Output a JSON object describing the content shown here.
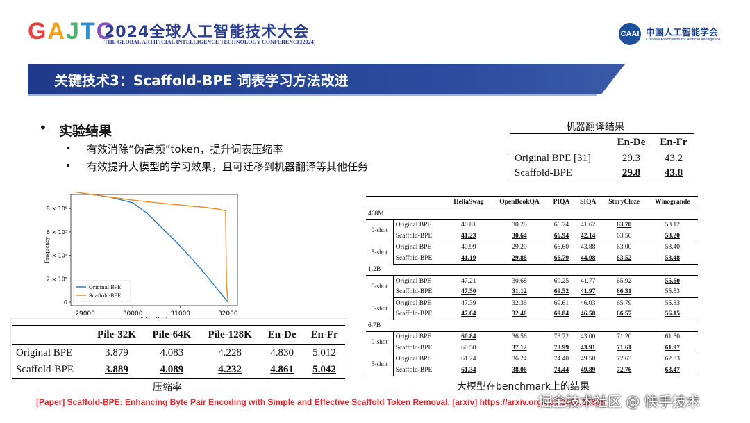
{
  "header": {
    "logo": [
      "G",
      "A",
      "J",
      "T",
      "C"
    ],
    "logo_colors": [
      "#e8403a",
      "#f3a21c",
      "#4db26c",
      "#2f8fd6",
      "#8b4fbf"
    ],
    "conf_title": "2024全球人工智能技术大会",
    "conf_subtitle": "THE GLOBAL ARTIFICIAL INTELLIGENCE TECHNOLOGY CONFERENCE(2024)",
    "caai_mark": "CAAI",
    "caai_name": "中国人工智能学会",
    "caai_en": "Chinese Association for Artificial Intelligence"
  },
  "section_title": "关键技术3：Scaffold-BPE 词表学习方法改进",
  "bullets": {
    "main": "实验结果",
    "subs": [
      "有效消除“伪高频”token，提升词表压缩率",
      "有效提升大模型的学习效果，且可迁移到机器翻译等其他任务"
    ]
  },
  "mt_table": {
    "caption": "机器翻译结果",
    "headers": [
      "",
      "En-De",
      "En-Fr"
    ],
    "rows": [
      {
        "name": "Original BPE [31]",
        "v": [
          "29.3",
          "43.2"
        ],
        "best": [
          false,
          false
        ]
      },
      {
        "name": "Scaffold-BPE",
        "v": [
          "29.8",
          "43.8"
        ],
        "best": [
          true,
          true
        ]
      }
    ]
  },
  "benchmark": {
    "caption": "大模型在benchmark上的结果",
    "headers": [
      "",
      "",
      "HellaSwag",
      "OpenBookQA",
      "PIQA",
      "SIQA",
      "StoryCloze",
      "Winogrande"
    ],
    "sizes": [
      {
        "size": "468M",
        "groups": [
          {
            "shot": "0-shot",
            "rows": [
              {
                "model": "Original BPE",
                "v": [
                  "40.81",
                  "30.20",
                  "66.74",
                  "41.62",
                  "63.70",
                  "53.12"
                ],
                "b": [
                  0,
                  0,
                  0,
                  0,
                  1,
                  0
                ]
              },
              {
                "model": "Scaffold-BPE",
                "v": [
                  "41.23",
                  "30.64",
                  "66.94",
                  "42.14",
                  "63.56",
                  "53.20"
                ],
                "b": [
                  1,
                  1,
                  1,
                  1,
                  0,
                  1
                ]
              }
            ]
          },
          {
            "shot": "5-shot",
            "rows": [
              {
                "model": "Original BPE",
                "v": [
                  "40.99",
                  "29.20",
                  "66.60",
                  "43.88",
                  "63.00",
                  "53.40"
                ],
                "b": [
                  0,
                  0,
                  0,
                  0,
                  0,
                  0
                ]
              },
              {
                "model": "Scaffold-BPE",
                "v": [
                  "41.19",
                  "29.88",
                  "66.79",
                  "44.98",
                  "63.52",
                  "53.48"
                ],
                "b": [
                  1,
                  1,
                  1,
                  1,
                  1,
                  1
                ]
              }
            ]
          }
        ]
      },
      {
        "size": "1.2B",
        "groups": [
          {
            "shot": "0-shot",
            "rows": [
              {
                "model": "Original BPE",
                "v": [
                  "47.21",
                  "30.68",
                  "69.25",
                  "41.77",
                  "65.92",
                  "55.60"
                ],
                "b": [
                  0,
                  0,
                  0,
                  0,
                  0,
                  1
                ]
              },
              {
                "model": "Scaffold-BPE",
                "v": [
                  "47.50",
                  "31.12",
                  "69.52",
                  "41.97",
                  "66.31",
                  "55.53"
                ],
                "b": [
                  1,
                  1,
                  1,
                  1,
                  1,
                  0
                ]
              }
            ]
          },
          {
            "shot": "5-shot",
            "rows": [
              {
                "model": "Original BPE",
                "v": [
                  "47.39",
                  "32.36",
                  "69.61",
                  "46.03",
                  "65.79",
                  "55.33"
                ],
                "b": [
                  0,
                  0,
                  0,
                  0,
                  0,
                  0
                ]
              },
              {
                "model": "Scaffold-BPE",
                "v": [
                  "47.64",
                  "32.40",
                  "69.84",
                  "46.58",
                  "66.57",
                  "56.15"
                ],
                "b": [
                  1,
                  1,
                  1,
                  1,
                  1,
                  1
                ]
              }
            ]
          }
        ]
      },
      {
        "size": "6.7B",
        "groups": [
          {
            "shot": "0-shot",
            "rows": [
              {
                "model": "Original BPE",
                "v": [
                  "60.84",
                  "36.56",
                  "73.72",
                  "43.00",
                  "71.20",
                  "61.50"
                ],
                "b": [
                  1,
                  0,
                  0,
                  0,
                  0,
                  0
                ]
              },
              {
                "model": "Scaffold-BPE",
                "v": [
                  "60.50",
                  "37.12",
                  "73.99",
                  "43.91",
                  "71.61",
                  "61.97"
                ],
                "b": [
                  0,
                  1,
                  1,
                  1,
                  1,
                  1
                ]
              }
            ]
          },
          {
            "shot": "5-shot",
            "rows": [
              {
                "model": "Original BPE",
                "v": [
                  "61.24",
                  "36.24",
                  "74.40",
                  "49.58",
                  "72.63",
                  "62.83"
                ],
                "b": [
                  0,
                  0,
                  0,
                  0,
                  0,
                  0
                ]
              },
              {
                "model": "Scaffold-BPE",
                "v": [
                  "61.34",
                  "38.08",
                  "74.44",
                  "49.89",
                  "72.76",
                  "63.47"
                ],
                "b": [
                  1,
                  1,
                  1,
                  1,
                  1,
                  1
                ]
              }
            ]
          }
        ]
      }
    ]
  },
  "chart_data": {
    "type": "line",
    "ylabel": "Frequency",
    "xlabel": "Token Rank",
    "xlim": [
      28700,
      32200
    ],
    "ylim": [
      -30000,
      920000
    ],
    "xticks": [
      29000,
      30000,
      31000,
      32000
    ],
    "yticks": [
      0,
      200000,
      400000,
      600000,
      800000
    ],
    "ytick_labels": [
      "0",
      "2 × 10⁵",
      "4 × 10⁵",
      "6 × 10⁵",
      "8 × 10⁵"
    ],
    "legend_position": "bottom-left",
    "series": [
      {
        "name": "Original BPE",
        "color": "#2f7fc1",
        "x": [
          28800,
          29500,
          30000,
          30300,
          30600,
          30900,
          31200,
          31500,
          31700,
          31900,
          32000
        ],
        "y": [
          940000,
          900000,
          850000,
          760000,
          640000,
          520000,
          390000,
          250000,
          150000,
          50000,
          0
        ]
      },
      {
        "name": "Scaffold-BPE",
        "color": "#f28a1e",
        "x": [
          28800,
          29500,
          30000,
          30500,
          31000,
          31500,
          31800,
          31950,
          31970,
          32000
        ],
        "y": [
          940000,
          900000,
          872000,
          850000,
          830000,
          810000,
          795000,
          780000,
          150000,
          0
        ]
      }
    ]
  },
  "compression_table": {
    "caption": "压缩率",
    "headers": [
      "",
      "Pile-32K",
      "Pile-64K",
      "Pile-128K",
      "En-De",
      "En-Fr"
    ],
    "rows": [
      {
        "name": "Original BPE",
        "v": [
          "3.879",
          "4.083",
          "4.228",
          "4.830",
          "5.012"
        ],
        "best": [
          false,
          false,
          false,
          false,
          false
        ]
      },
      {
        "name": "Scaffold-BPE",
        "v": [
          "3.889",
          "4.089",
          "4.232",
          "4.861",
          "5.042"
        ],
        "best": [
          true,
          true,
          true,
          true,
          true
        ]
      }
    ]
  },
  "footer": "[Paper] Scaffold-BPE: Enhancing Byte Pair Encoding with Simple and Effective Scaffold Token Removal. [arxiv] https://arxiv.org/abs/2404.17808",
  "watermark": "掘金技术社区 @ 快手技术"
}
